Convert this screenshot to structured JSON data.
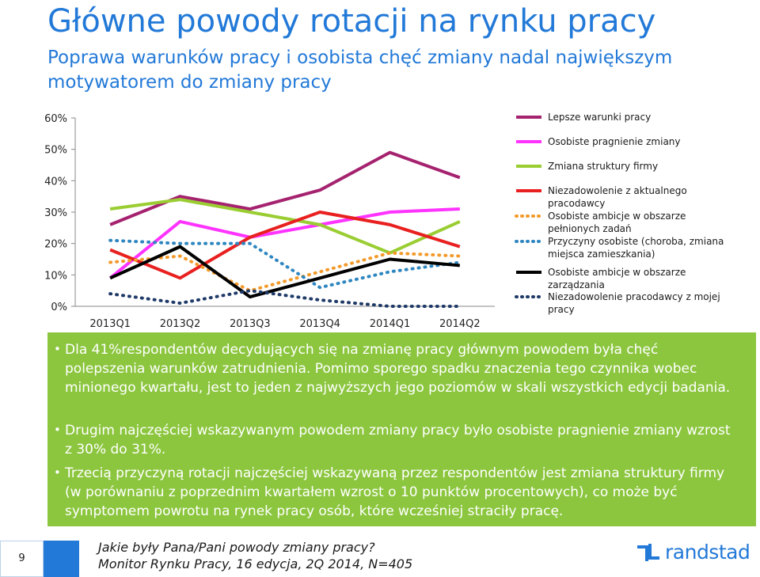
{
  "header": {
    "title": "Główne powody rotacji na rynku pracy",
    "subtitle": "Poprawa warunków pracy i osobista chęć zmiany nadal największym motywatorem do zmiany pracy"
  },
  "chart_data": {
    "type": "line",
    "x": [
      "2013Q1",
      "2013Q2",
      "2013Q3",
      "2013Q4",
      "2014Q1",
      "2014Q2"
    ],
    "yticks": [
      "0%",
      "10%",
      "20%",
      "30%",
      "40%",
      "50%",
      "60%"
    ],
    "ylim": [
      0,
      60
    ],
    "grid": false,
    "legend_position": "right",
    "series": [
      {
        "name": "Lepsze warunki pracy",
        "color": "#a5226f",
        "dash": "solid",
        "values": [
          26,
          35,
          31,
          37,
          49,
          41
        ]
      },
      {
        "name": "Osobiste pragnienie zmiany",
        "color": "#ff33ff",
        "dash": "solid",
        "values": [
          9,
          27,
          22,
          26,
          30,
          31
        ]
      },
      {
        "name": "Zmiana struktury firmy",
        "color": "#9acd32",
        "dash": "solid",
        "values": [
          31,
          34,
          30,
          26,
          17,
          27
        ]
      },
      {
        "name": "Niezadowolenie z aktualnego pracodawcy",
        "color": "#e8201f",
        "dash": "solid",
        "values": [
          18,
          9,
          22,
          30,
          26,
          19
        ]
      },
      {
        "name": "Osobiste ambicje w obszarze pełnionych zadań",
        "color": "#f39a2b",
        "dash": "dotted",
        "values": [
          14,
          16,
          5,
          11,
          17,
          16
        ]
      },
      {
        "name": "Przyczyny osobiste (choroba, zmiana miejsca zamieszkania)",
        "color": "#2e86c1",
        "dash": "dotted",
        "values": [
          21,
          20,
          20,
          6,
          11,
          14
        ]
      },
      {
        "name": "Osobiste ambicje w obszarze zarządzania",
        "color": "#000000",
        "dash": "solid",
        "values": [
          9,
          19,
          3,
          9,
          15,
          13
        ]
      },
      {
        "name": "Niezadowolenie pracodawcy z mojej pracy",
        "color": "#1f3a68",
        "dash": "dotted",
        "values": [
          4,
          1,
          5,
          2,
          0,
          0
        ]
      }
    ]
  },
  "legend": {
    "items": [
      {
        "text": "Lepsze warunki pracy"
      },
      {
        "text": "Osobiste pragnienie zmiany"
      },
      {
        "text": "Zmiana struktury firmy"
      },
      {
        "text": "Niezadowolenie z aktualnego pracodawcy"
      },
      {
        "text": "Osobiste ambicje w obszarze pełnionych zadań"
      },
      {
        "text": "Przyczyny osobiste (choroba, zmiana miejsca zamieszkania)"
      },
      {
        "text": "Osobiste ambicje w obszarze zarządzania"
      },
      {
        "text": "Niezadowolenie pracodawcy z mojej pracy"
      }
    ]
  },
  "bullets": [
    "Dla 41%respondentów decydujących się na zmianę pracy głównym powodem była chęć polepszenia warunków zatrudnienia. Pomimo sporego spadku znaczenia tego czynnika wobec minionego kwartału, jest to jeden z najwyższych jego poziomów  w skali wszystkich edycji badania.",
    "Drugim najczęściej wskazywanym powodem zmiany pracy było osobiste pragnienie zmiany wzrost z 30% do 31%.",
    "Trzecią przyczyną rotacji najczęściej wskazywaną przez respondentów jest zmiana struktury firmy (w porównaniu z poprzednim kwartałem wzrost o 10 punktów procentowych), co może być symptomem powrotu na rynek pracy osób, które wcześniej straciły pracę."
  ],
  "footer": {
    "page_number": "9",
    "question": "Jakie były Pana/Pani powody zmiany pracy?",
    "source": "Monitor Rynku Pracy, 16 edycja, 2Q 2014, N=405",
    "logo_text": "randstad"
  },
  "colors": {
    "title": "#2279d8",
    "green_box": "#8cc63f",
    "brand_blue": "#2279d8"
  }
}
